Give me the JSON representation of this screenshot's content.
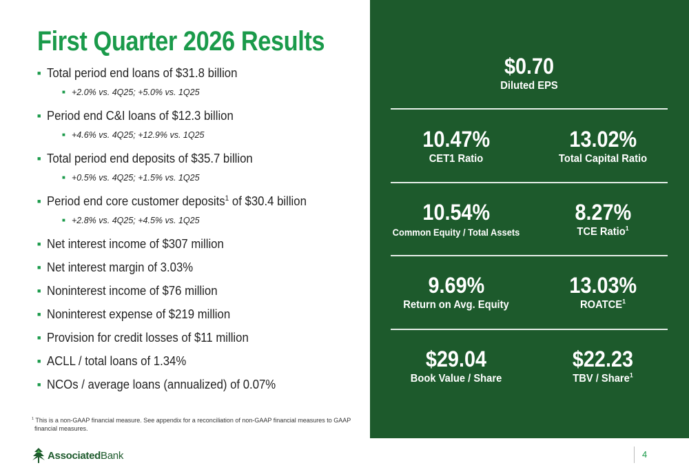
{
  "title": "First Quarter 2026 Results",
  "bullets": [
    {
      "level": 1,
      "text": "Total period end loans of $31.8 billion"
    },
    {
      "level": 2,
      "text": "+2.0% vs. 4Q25; +5.0% vs. 1Q25"
    },
    {
      "level": 1,
      "text_before": "Period end C&I loans of $12.3 billion"
    },
    {
      "level": 2,
      "text": "+4.6% vs. 4Q25; +12.9% vs. 1Q25"
    },
    {
      "level": 1,
      "text": "Total period end deposits of $35.7 billion"
    },
    {
      "level": 2,
      "text": "+0.5% vs. 4Q25; +1.5% vs. 1Q25"
    },
    {
      "level": 1,
      "text_before": "Period end core customer deposits",
      "sup": "1",
      "text_after": " of $30.4 billion"
    },
    {
      "level": 2,
      "text": "+2.8% vs. 4Q25; +4.5% vs. 1Q25"
    },
    {
      "level": 1,
      "text": "Net interest income of $307 million"
    },
    {
      "level": 1,
      "text": "Net interest margin of 3.03%"
    },
    {
      "level": 1,
      "text": "Noninterest income of $76 million"
    },
    {
      "level": 1,
      "text": "Noninterest expense of $219 million"
    },
    {
      "level": 1,
      "text": "Provision for credit losses of $11 million"
    },
    {
      "level": 1,
      "text": "ACLL / total loans of 1.34%"
    },
    {
      "level": 1,
      "text": "NCOs / average loans (annualized) of 0.07%"
    }
  ],
  "footnote": {
    "sup": "1",
    "line1": " This is a non-GAAP financial measure. See appendix for a reconciliation of non-GAAP financial measures to GAAP",
    "line2": "financial measures."
  },
  "metrics": {
    "eps": {
      "value": "$0.70",
      "label": "Diluted EPS"
    },
    "cet1": {
      "value": "10.47%",
      "label": "CET1 Ratio"
    },
    "total_capital": {
      "value": "13.02%",
      "label": "Total Capital Ratio"
    },
    "common_equity": {
      "value": "10.54%",
      "label": "Common Equity / Total Assets"
    },
    "tce": {
      "value": "8.27%",
      "label": "TCE Ratio",
      "sup": "1"
    },
    "roe": {
      "value": "9.69%",
      "label": "Return on Avg. Equity"
    },
    "roatce": {
      "value": "13.03%",
      "label": "ROATCE",
      "sup": "1"
    },
    "bv": {
      "value": "$29.04",
      "label": "Book Value / Share"
    },
    "tbv": {
      "value": "$22.23",
      "label": "TBV / Share",
      "sup": "1"
    }
  },
  "footer": {
    "brand_bold": "Associated",
    "brand_regular": "Bank",
    "logo_icon": "associated-bank-logo-mark",
    "page_number": "4"
  },
  "colors": {
    "title_green": "#1a9a4a",
    "panel_green": "#1d5a2c"
  }
}
